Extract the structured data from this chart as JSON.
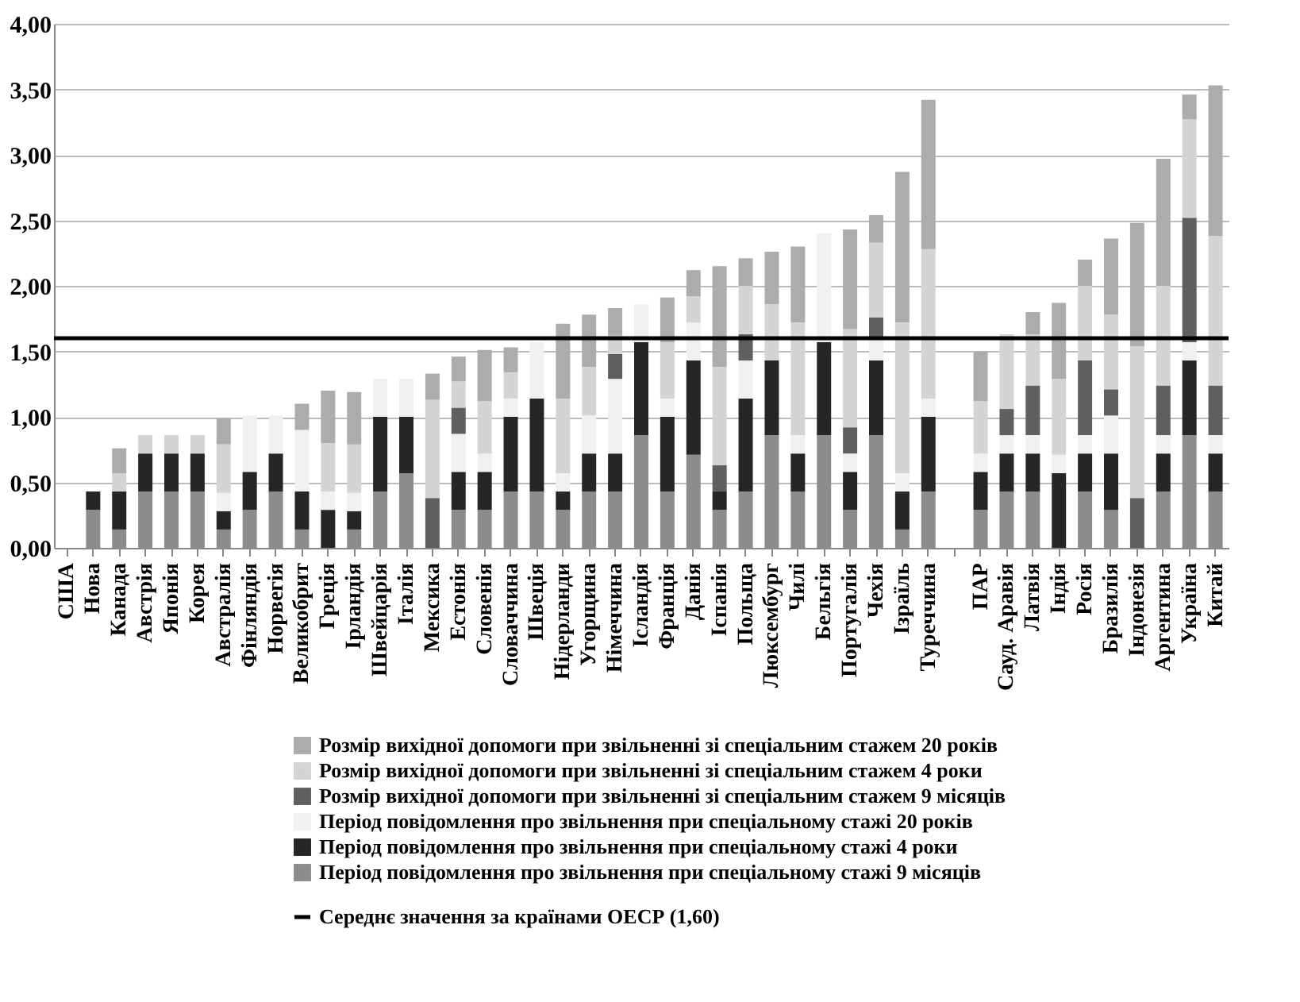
{
  "chart_data": {
    "type": "bar",
    "stacked": true,
    "categories": [
      "США",
      "Нова",
      "Канада",
      "Австрія",
      "Японія",
      "Корея",
      "Австралія",
      "Фінляндія",
      "Норвегія",
      "Великобрит",
      "Греція",
      "Ірландія",
      "Швейцарія",
      "Італія",
      "Мексика",
      "Естонія",
      "Словенія",
      "Словаччина",
      "Швеція",
      "Нідерланди",
      "Угорщина",
      "Німеччина",
      "Ісландія",
      "Франція",
      "Данія",
      "Іспанія",
      "Польща",
      "Люксембург",
      "Чилі",
      "Бельгія",
      "Португалія",
      "Чехія",
      "Ізраїль",
      "Туреччина",
      null,
      "ПАР",
      "Сауд. Аравія",
      "Латвія",
      "Індія",
      "Росія",
      "Бразилія",
      "Індонезія",
      "Аргентина",
      "Україна",
      "Китай"
    ],
    "series": [
      {
        "name": "Період повідомлення про звільнення при спеціальному стажі 9 місяців",
        "color": "#8c8c8c",
        "values": [
          0,
          0.29,
          0.14,
          0.43,
          0.43,
          0.43,
          0.14,
          0.29,
          0.43,
          0.14,
          0,
          0.14,
          0.43,
          0.57,
          0,
          0.29,
          0.29,
          0.43,
          0.43,
          0.29,
          0.43,
          0.43,
          0.86,
          0.43,
          0.71,
          0.29,
          0.43,
          0.86,
          0.43,
          0.86,
          0.29,
          0.86,
          0.14,
          0.43,
          null,
          0.29,
          0.43,
          0.43,
          0,
          0.43,
          0.29,
          0,
          0.43,
          0.86,
          0.43
        ]
      },
      {
        "name": "Період повідомлення про звільнення при спеціальному стажі 4 роки",
        "color": "#262626",
        "values": [
          0,
          0.14,
          0.29,
          0.29,
          0.29,
          0.29,
          0.14,
          0.29,
          0.29,
          0.29,
          0.29,
          0.14,
          0.57,
          0.43,
          0,
          0.29,
          0.29,
          0.57,
          0.71,
          0.14,
          0.29,
          0.29,
          0.71,
          0.57,
          0.72,
          0.14,
          0.71,
          0.57,
          0.29,
          0.71,
          0.29,
          0.57,
          0.29,
          0.57,
          null,
          0.29,
          0.29,
          0.29,
          0.57,
          0.29,
          0.43,
          0,
          0.29,
          0.57,
          0.29
        ]
      },
      {
        "name": "Період повідомлення про звільнення при спеціальному стажі 20 років",
        "color": "#f0f0f0",
        "values": [
          0,
          0,
          0,
          0,
          0,
          0,
          0.14,
          0.43,
          0.29,
          0.47,
          0.14,
          0.14,
          0.29,
          0.29,
          0,
          0.29,
          0.14,
          0.14,
          0.43,
          0.14,
          0.29,
          0.57,
          0.29,
          0.14,
          0.29,
          0,
          0.29,
          0,
          0.14,
          0.83,
          0.14,
          0.17,
          0.14,
          0.14,
          null,
          0.14,
          0.14,
          0.14,
          0.14,
          0.14,
          0.29,
          0,
          0.14,
          0.14,
          0.14
        ]
      },
      {
        "name": "Розмір вихідної допомоги при звільненні зі спеціальним стажем 9 місяців",
        "color": "#5f5f5f",
        "values": [
          0,
          0,
          0,
          0,
          0,
          0,
          0,
          0,
          0,
          0,
          0,
          0,
          0,
          0,
          0.38,
          0.2,
          0,
          0,
          0,
          0,
          0,
          0.19,
          0,
          0,
          0,
          0.2,
          0.2,
          0,
          0,
          0,
          0.2,
          0.16,
          0,
          0,
          null,
          0,
          0.2,
          0.38,
          0,
          0.57,
          0.2,
          0.38,
          0.38,
          0.95,
          0.38
        ]
      },
      {
        "name": "Розмір вихідної допомоги при звільненні зі спеціальним стажем 4 роки",
        "color": "#d4d4d4",
        "values": [
          0,
          0,
          0.14,
          0.14,
          0.14,
          0.14,
          0.37,
          0,
          0,
          0,
          0.37,
          0.37,
          0,
          0,
          0.75,
          0.2,
          0.4,
          0.2,
          0,
          0.57,
          0.37,
          0.14,
          0,
          0.43,
          0.2,
          0.75,
          0.37,
          0.43,
          0.86,
          0,
          0.75,
          0.57,
          1.15,
          1.14,
          null,
          0.4,
          0.57,
          0.39,
          0.58,
          0.57,
          0.57,
          1.16,
          0.76,
          0.75,
          1.14
        ]
      },
      {
        "name": "Розмір вихідної допомоги при звільненні зі спеціальним стажем 20 років",
        "color": "#acacac",
        "values": [
          0,
          0,
          0.19,
          0,
          0,
          0,
          0.2,
          0,
          0,
          0.2,
          0.4,
          0.4,
          0,
          0,
          0.2,
          0.19,
          0.39,
          0.19,
          0,
          0.57,
          0.4,
          0.21,
          0,
          0.34,
          0.2,
          0.77,
          0.21,
          0.4,
          0.58,
          0,
          0.76,
          0.21,
          1.15,
          1.14,
          null,
          0.38,
          0,
          0.17,
          0.58,
          0.2,
          0.58,
          0.94,
          0.97,
          0.19,
          1.15
        ]
      }
    ],
    "ylim": [
      0,
      4
    ],
    "yticks": [
      {
        "value": 0,
        "label": "0,00"
      },
      {
        "value": 0.5,
        "label": "0,50"
      },
      {
        "value": 1,
        "label": "1,00"
      },
      {
        "value": 1.5,
        "label": "1,50"
      },
      {
        "value": 2,
        "label": "2,00"
      },
      {
        "value": 2.5,
        "label": "2,50"
      },
      {
        "value": 3,
        "label": "3,00"
      },
      {
        "value": 3.5,
        "label": "3,50"
      },
      {
        "value": 4,
        "label": "4,00"
      }
    ],
    "ref_lines": [
      {
        "axis": "y",
        "value": 1.6,
        "label": "Середнє значення за країнами ОЕСР (1,60)",
        "color": "#000000"
      }
    ],
    "grid": "y",
    "legend": "bottom"
  }
}
